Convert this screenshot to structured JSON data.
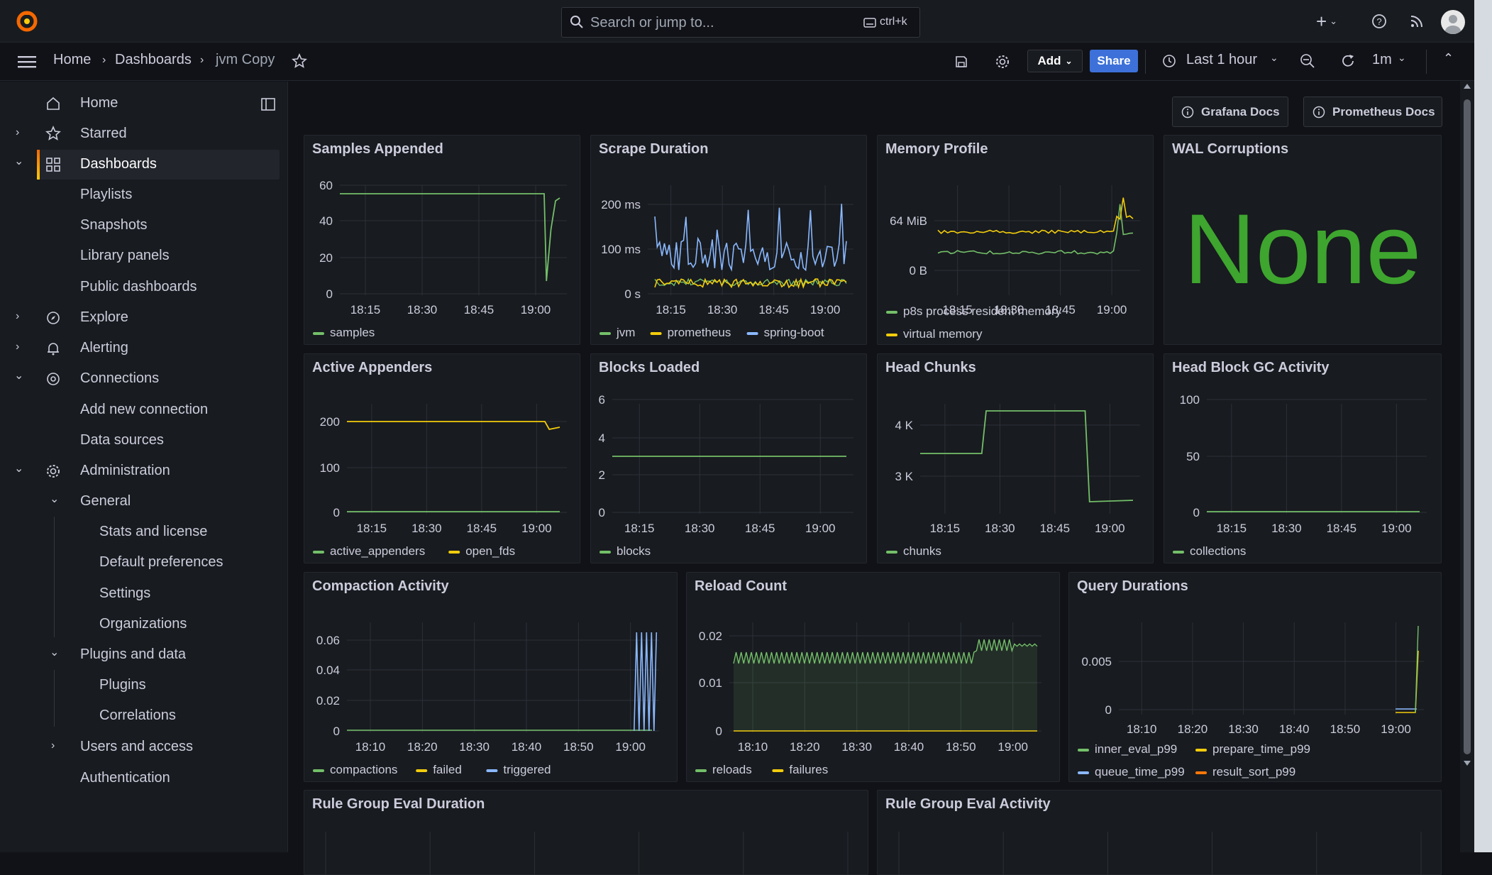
{
  "topbar": {
    "search_placeholder": "Search or jump to...",
    "search_shortcut": "ctrl+k"
  },
  "breadcrumb": {
    "home": "Home",
    "dashboards": "Dashboards",
    "current": "jvm Copy"
  },
  "toolbar": {
    "add_label": "Add",
    "share_label": "Share",
    "time_range": "Last 1 hour",
    "refresh_interval": "1m"
  },
  "sidebar": {
    "items": [
      {
        "label": "Home",
        "icon": "home-icon"
      },
      {
        "label": "Starred",
        "icon": "star-icon"
      },
      {
        "label": "Dashboards",
        "icon": "dashboards-icon"
      },
      {
        "label": "Playlists"
      },
      {
        "label": "Snapshots"
      },
      {
        "label": "Library panels"
      },
      {
        "label": "Public dashboards"
      },
      {
        "label": "Explore",
        "icon": "compass-icon"
      },
      {
        "label": "Alerting",
        "icon": "bell-icon"
      },
      {
        "label": "Connections",
        "icon": "connections-icon"
      },
      {
        "label": "Add new connection"
      },
      {
        "label": "Data sources"
      },
      {
        "label": "Administration",
        "icon": "gear-icon"
      },
      {
        "label": "General"
      },
      {
        "label": "Stats and license"
      },
      {
        "label": "Default preferences"
      },
      {
        "label": "Settings"
      },
      {
        "label": "Organizations"
      },
      {
        "label": "Plugins and data"
      },
      {
        "label": "Plugins"
      },
      {
        "label": "Correlations"
      },
      {
        "label": "Users and access"
      },
      {
        "label": "Authentication"
      }
    ]
  },
  "links": {
    "grafana_docs": "Grafana Docs",
    "prometheus_docs": "Prometheus Docs"
  },
  "colors": {
    "green": "#73bf69",
    "yellow": "#f2cc0c",
    "blue": "#8ab8ff",
    "orange": "#ff780a",
    "accent": "#f46800",
    "share": "#3d71d9"
  },
  "panels": {
    "p1": {
      "title": "Samples Appended",
      "y_ticks": [
        "60",
        "40",
        "20",
        "0"
      ],
      "x_ticks": [
        "18:15",
        "18:30",
        "18:45",
        "19:00"
      ],
      "legend": [
        "samples"
      ]
    },
    "p2": {
      "title": "Scrape Duration",
      "y_ticks": [
        "200 ms",
        "100 ms",
        "0 s"
      ],
      "x_ticks": [
        "18:15",
        "18:30",
        "18:45",
        "19:00"
      ],
      "legend": [
        "jvm",
        "prometheus",
        "spring-boot"
      ]
    },
    "p3": {
      "title": "Memory Profile",
      "y_ticks": [
        "64 MiB",
        "0 B"
      ],
      "x_ticks": [
        "18:15",
        "18:30",
        "18:45",
        "19:00"
      ],
      "legend": [
        "p8s process resident memory",
        "virtual memory"
      ]
    },
    "p4": {
      "title": "WAL Corruptions",
      "value": "None"
    },
    "p5": {
      "title": "Active Appenders",
      "y_ticks": [
        "200",
        "100",
        "0"
      ],
      "x_ticks": [
        "18:15",
        "18:30",
        "18:45",
        "19:00"
      ],
      "legend": [
        "active_appenders",
        "open_fds"
      ]
    },
    "p6": {
      "title": "Blocks Loaded",
      "y_ticks": [
        "6",
        "4",
        "2",
        "0"
      ],
      "x_ticks": [
        "18:15",
        "18:30",
        "18:45",
        "19:00"
      ],
      "legend": [
        "blocks"
      ]
    },
    "p7": {
      "title": "Head Chunks",
      "y_ticks": [
        "4 K",
        "3 K"
      ],
      "x_ticks": [
        "18:15",
        "18:30",
        "18:45",
        "19:00"
      ],
      "legend": [
        "chunks"
      ]
    },
    "p8": {
      "title": "Head Block GC Activity",
      "y_ticks": [
        "100",
        "50",
        "0"
      ],
      "x_ticks": [
        "18:15",
        "18:30",
        "18:45",
        "19:00"
      ],
      "legend": [
        "collections"
      ]
    },
    "p9": {
      "title": "Compaction Activity",
      "y_ticks": [
        "0.06",
        "0.04",
        "0.02",
        "0"
      ],
      "x_ticks": [
        "18:10",
        "18:20",
        "18:30",
        "18:40",
        "18:50",
        "19:00"
      ],
      "legend": [
        "compactions",
        "failed",
        "triggered"
      ]
    },
    "p10": {
      "title": "Reload Count",
      "y_ticks": [
        "0.02",
        "0.01",
        "0"
      ],
      "x_ticks": [
        "18:10",
        "18:20",
        "18:30",
        "18:40",
        "18:50",
        "19:00"
      ],
      "legend": [
        "reloads",
        "failures"
      ]
    },
    "p11": {
      "title": "Query Durations",
      "y_ticks": [
        "0.005",
        "0"
      ],
      "x_ticks": [
        "18:10",
        "18:20",
        "18:30",
        "18:40",
        "18:50",
        "19:00"
      ],
      "legend": [
        "inner_eval_p99",
        "prepare_time_p99",
        "queue_time_p99",
        "result_sort_p99"
      ]
    },
    "p12": {
      "title": "Rule Group Eval Duration"
    },
    "p13": {
      "title": "Rule Group Eval Activity"
    }
  }
}
